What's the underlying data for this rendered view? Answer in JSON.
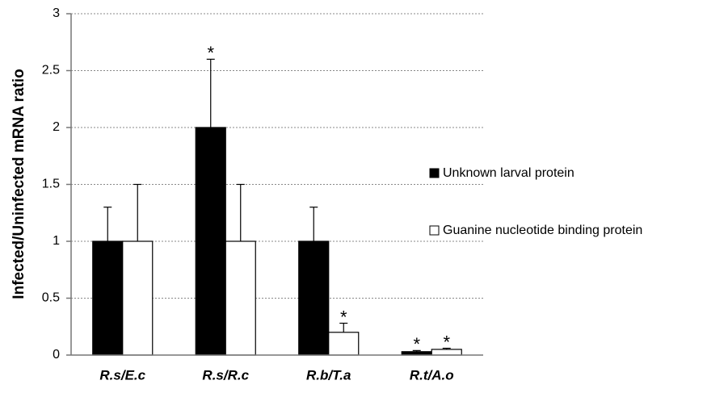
{
  "chart_data": {
    "type": "bar",
    "y_label": "Infected/Uninfected mRNA ratio",
    "categories": [
      "R.s/E.c",
      "R.s/R.c",
      "R.b/T.a",
      "R.t/A.o"
    ],
    "series": [
      {
        "name": "Unknown larval protein",
        "color": "#000000",
        "values": [
          1,
          2,
          1,
          0.03
        ],
        "errors": [
          0.3,
          0.6,
          0.3,
          0.01
        ],
        "significance": [
          null,
          "*",
          null,
          "*"
        ]
      },
      {
        "name": "Guanine nucleotide binding protein",
        "color": "#ffffff",
        "values": [
          1,
          1,
          0.2,
          0.05
        ],
        "errors": [
          0.5,
          0.5,
          0.08,
          0.01
        ],
        "significance": [
          null,
          null,
          "*",
          "*"
        ]
      }
    ],
    "ylim": [
      0,
      3
    ],
    "yticks": [
      0,
      0.5,
      1,
      1.5,
      2,
      2.5,
      3
    ],
    "grid": true,
    "legend": "right"
  }
}
